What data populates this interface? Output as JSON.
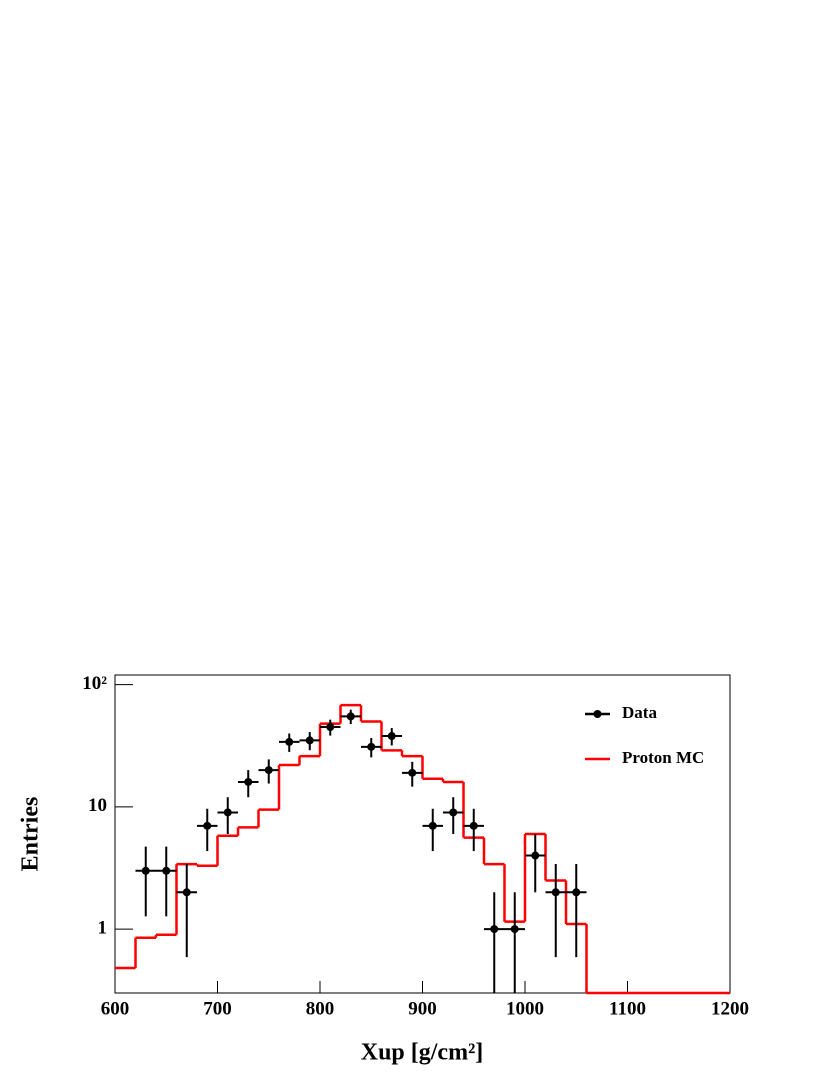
{
  "chart_data": {
    "type": "histogram",
    "xlabel": "Xup [g/cm²]",
    "ylabel": "Entries",
    "xlim": [
      600,
      1200
    ],
    "ylim": [
      0.3,
      120
    ],
    "log_y": true,
    "legend": "top-right",
    "xticks": [
      600,
      700,
      800,
      900,
      1000,
      1100,
      1200
    ],
    "yticks": [
      1,
      10,
      {
        "value": 100,
        "label": "10²"
      }
    ],
    "series": [
      {
        "name": "Data",
        "type": "scatter",
        "color": "#000000",
        "x": [
          630,
          650,
          670,
          690,
          710,
          730,
          750,
          770,
          790,
          810,
          830,
          850,
          870,
          890,
          910,
          930,
          950,
          970,
          990,
          1010,
          1030,
          1050
        ],
        "values": [
          3,
          3,
          2,
          7,
          9,
          16,
          20,
          34,
          35,
          45,
          55,
          31,
          38,
          19,
          7,
          9,
          7,
          1,
          1,
          4,
          2,
          2
        ],
        "errors": [
          1.73,
          1.73,
          1.41,
          2.65,
          3,
          4,
          4.47,
          5.83,
          5.92,
          6.71,
          7.42,
          5.57,
          6.16,
          4.36,
          2.65,
          3,
          2.65,
          1,
          1,
          2,
          1.41,
          1.41
        ],
        "xerr": 10
      },
      {
        "name": "Proton MC",
        "type": "histogram",
        "color": "#ff0000",
        "bins": [
          600,
          620,
          640,
          660,
          680,
          700,
          720,
          740,
          760,
          780,
          800,
          820,
          840,
          860,
          880,
          900,
          920,
          940,
          960,
          980,
          1000,
          1020,
          1040,
          1060,
          1080,
          1100,
          1120,
          1140,
          1160,
          1180,
          1200
        ],
        "values": [
          0.48,
          0.85,
          0.9,
          3.4,
          3.3,
          5.8,
          6.8,
          9.5,
          22,
          26,
          48,
          68,
          50,
          29,
          26,
          17,
          16,
          5.6,
          3.4,
          1.15,
          6,
          2.5,
          1.1,
          0,
          0,
          0,
          0,
          0,
          0,
          0
        ]
      }
    ]
  }
}
